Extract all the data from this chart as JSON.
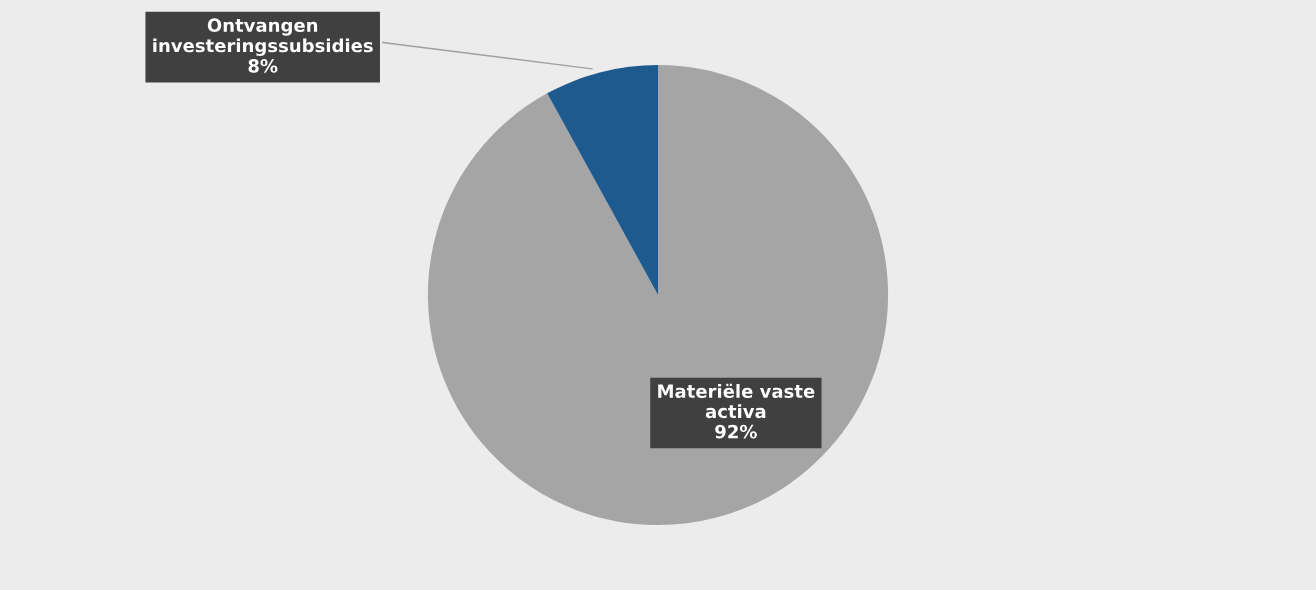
{
  "chart_data": {
    "type": "pie",
    "categories": [
      "Materiële vaste activa",
      "Ontvangen investeringssubsidies"
    ],
    "values": [
      92,
      8
    ],
    "colors": [
      "#a5a5a5",
      "#1f5a8e"
    ],
    "value_labels": [
      "92%",
      "8%"
    ],
    "legend": false
  }
}
